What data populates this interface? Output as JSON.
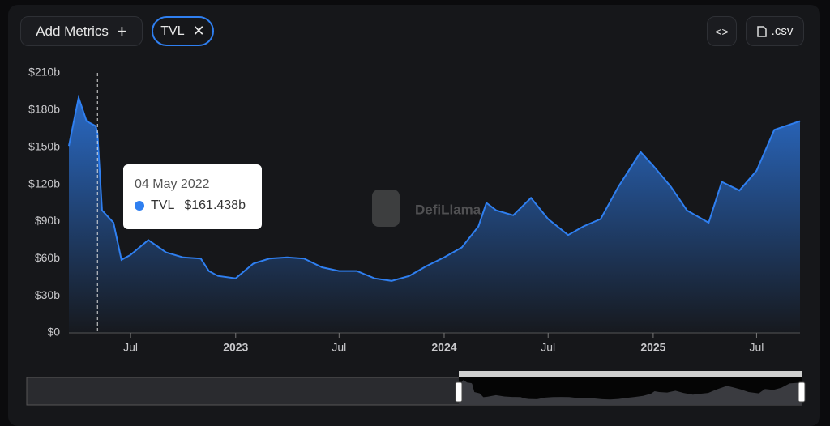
{
  "toolbar": {
    "add": "Add Metrics",
    "metric": "TVL",
    "csv": ".csv"
  },
  "watermark": "DefiLlama",
  "chart_data": {
    "type": "area",
    "x": [
      "2022-03-15",
      "2022-04-01",
      "2022-04-15",
      "2022-05-01",
      "2022-05-04",
      "2022-05-12",
      "2022-06-01",
      "2022-06-15",
      "2022-07-01",
      "2022-08-01",
      "2022-09-01",
      "2022-10-01",
      "2022-11-01",
      "2022-11-15",
      "2022-12-01",
      "2023-01-01",
      "2023-02-01",
      "2023-03-01",
      "2023-04-01",
      "2023-05-01",
      "2023-06-01",
      "2023-07-01",
      "2023-08-01",
      "2023-09-01",
      "2023-10-01",
      "2023-11-01",
      "2023-12-01",
      "2024-01-01",
      "2024-02-01",
      "2024-03-01",
      "2024-03-15",
      "2024-04-01",
      "2024-05-01",
      "2024-06-01",
      "2024-07-01",
      "2024-08-05",
      "2024-09-01",
      "2024-10-01",
      "2024-11-01",
      "2024-12-10",
      "2025-01-01",
      "2025-02-01",
      "2025-03-01",
      "2025-04-08",
      "2025-05-01",
      "2025-06-01",
      "2025-07-01",
      "2025-08-01",
      "2025-09-15"
    ],
    "series": [
      {
        "name": "TVL",
        "color": "#2f7ff0",
        "values": [
          151,
          190,
          171,
          167,
          161.438,
          99,
          89,
          59,
          63,
          75,
          65,
          61,
          60,
          50,
          46,
          44,
          56,
          60,
          61,
          60,
          53,
          50,
          50,
          44,
          42,
          46,
          54,
          61,
          69,
          86,
          105,
          99,
          95,
          109,
          92,
          79,
          86,
          92,
          118,
          146,
          135,
          118,
          99,
          89,
          122,
          115,
          131,
          164,
          171
        ]
      }
    ],
    "xlim": [
      "2022-03-15",
      "2025-09-15"
    ],
    "xticks": [
      {
        "value": "2022-07-01",
        "label": "Jul"
      },
      {
        "value": "2023-01-01",
        "label": "2023"
      },
      {
        "value": "2023-07-01",
        "label": "Jul"
      },
      {
        "value": "2024-01-01",
        "label": "2024"
      },
      {
        "value": "2024-07-01",
        "label": "Jul"
      },
      {
        "value": "2025-01-01",
        "label": "2025"
      },
      {
        "value": "2025-07-01",
        "label": "Jul"
      }
    ],
    "ylim": [
      0,
      210
    ],
    "yticks": [
      {
        "value": 0,
        "label": "$0"
      },
      {
        "value": 30,
        "label": "$30b"
      },
      {
        "value": 60,
        "label": "$60b"
      },
      {
        "value": 90,
        "label": "$90b"
      },
      {
        "value": 120,
        "label": "$120b"
      },
      {
        "value": 150,
        "label": "$150b"
      },
      {
        "value": 180,
        "label": "$180b"
      },
      {
        "value": 210,
        "label": "$210b"
      }
    ],
    "tooltip": {
      "x": "2022-05-04",
      "date": "04 May 2022",
      "label": "$161.438b"
    }
  }
}
